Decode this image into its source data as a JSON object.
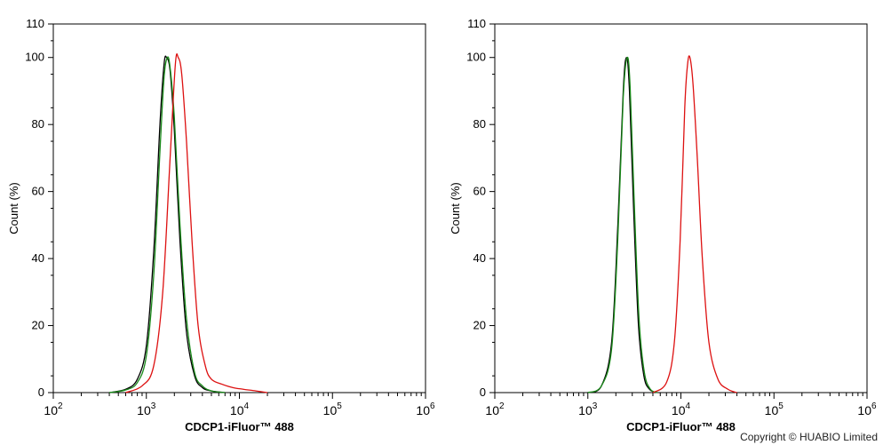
{
  "chart_data": [
    {
      "type": "line",
      "xlabel": "CDCP1-iFluor™ 488",
      "ylabel": "Count  (%)",
      "xscale": "log",
      "xlim": [
        100,
        1000000
      ],
      "ylim": [
        0,
        110
      ],
      "x_ticks": [
        {
          "base": "10",
          "exp": "2"
        },
        {
          "base": "10",
          "exp": "3"
        },
        {
          "base": "10",
          "exp": "4"
        },
        {
          "base": "10",
          "exp": "5"
        },
        {
          "base": "10",
          "exp": "6"
        }
      ],
      "y_ticks": [
        "0",
        "20",
        "40",
        "60",
        "80",
        "100",
        "110"
      ],
      "grid": false,
      "series": [
        {
          "color": "#000000",
          "x": [
            400,
            600,
            800,
            1000,
            1200,
            1400,
            1550,
            1650,
            1800,
            2000,
            2300,
            2700,
            3300,
            4000,
            5000,
            7000
          ],
          "y": [
            0,
            1,
            4,
            14,
            42,
            80,
            98,
            100,
            96,
            78,
            45,
            18,
            5,
            1.5,
            0.5,
            0
          ]
        },
        {
          "color": "#1a8a1a",
          "x": [
            400,
            600,
            800,
            1000,
            1200,
            1400,
            1550,
            1680,
            1800,
            2000,
            2300,
            2700,
            3300,
            4000,
            5000,
            7000
          ],
          "y": [
            0,
            0.8,
            3,
            11,
            35,
            72,
            94,
            100,
            97,
            82,
            50,
            22,
            6,
            2,
            0.5,
            0
          ]
        },
        {
          "color": "#dd1111",
          "x": [
            600,
            900,
            1200,
            1500,
            1800,
            2050,
            2200,
            2400,
            2700,
            3100,
            3600,
            4300,
            5000,
            6500,
            8500,
            11000,
            15000,
            20000
          ],
          "y": [
            0,
            2,
            8,
            30,
            70,
            98,
            100,
            95,
            75,
            45,
            20,
            8,
            4,
            2.5,
            1.5,
            1,
            0.5,
            0
          ]
        }
      ]
    },
    {
      "type": "line",
      "xlabel": "CDCP1-iFluor™ 488",
      "ylabel": "Count  (%)",
      "xscale": "log",
      "xlim": [
        100,
        1000000
      ],
      "ylim": [
        0,
        110
      ],
      "x_ticks": [
        {
          "base": "10",
          "exp": "2"
        },
        {
          "base": "10",
          "exp": "3"
        },
        {
          "base": "10",
          "exp": "4"
        },
        {
          "base": "10",
          "exp": "5"
        },
        {
          "base": "10",
          "exp": "6"
        }
      ],
      "y_ticks": [
        "0",
        "20",
        "40",
        "60",
        "80",
        "100",
        "110"
      ],
      "grid": false,
      "series": [
        {
          "color": "#000000",
          "x": [
            1000,
            1400,
            1800,
            2100,
            2400,
            2600,
            2800,
            3100,
            3500,
            4000,
            4600,
            5500
          ],
          "y": [
            0,
            2,
            15,
            50,
            90,
            100,
            90,
            55,
            20,
            5,
            1,
            0
          ]
        },
        {
          "color": "#1a8a1a",
          "x": [
            1000,
            1400,
            1800,
            2100,
            2400,
            2650,
            2850,
            3150,
            3550,
            4050,
            4700,
            5600
          ],
          "y": [
            0,
            2,
            13,
            46,
            88,
            100,
            91,
            57,
            22,
            6,
            1,
            0
          ]
        },
        {
          "color": "#dd1111",
          "x": [
            5000,
            7000,
            8500,
            9800,
            11000,
            11800,
            12500,
            13500,
            15000,
            17000,
            20000,
            25000,
            32000,
            40000
          ],
          "y": [
            0,
            3,
            15,
            45,
            85,
            98,
            100,
            92,
            70,
            40,
            15,
            4,
            1,
            0
          ]
        }
      ]
    }
  ],
  "copyright": "Copyright © HUABIO Limited"
}
